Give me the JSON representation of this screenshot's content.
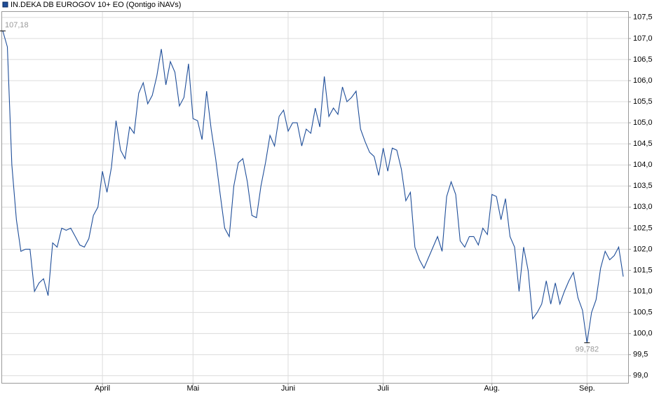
{
  "chart_data": {
    "type": "line",
    "title": "IN.DEKA DB EUROGOV 10+ EO (Qontigo iNAVs)",
    "series": [
      {
        "name": "IN.DEKA DB EUROGOV 10+ EO (Qontigo iNAVs)",
        "color": "#1f4e99",
        "values": [
          107.18,
          106.8,
          104.0,
          102.7,
          101.95,
          102.0,
          102.0,
          101.0,
          101.2,
          101.3,
          100.9,
          102.15,
          102.05,
          102.5,
          102.45,
          102.5,
          102.3,
          102.1,
          102.05,
          102.25,
          102.8,
          103.0,
          103.85,
          103.35,
          103.95,
          105.05,
          104.35,
          104.15,
          104.9,
          104.75,
          105.7,
          105.95,
          105.45,
          105.65,
          106.1,
          106.75,
          105.9,
          106.45,
          106.2,
          105.4,
          105.6,
          106.4,
          105.1,
          105.05,
          104.6,
          105.75,
          104.85,
          104.15,
          103.3,
          102.5,
          102.3,
          103.5,
          104.05,
          104.15,
          103.6,
          102.8,
          102.75,
          103.5,
          104.05,
          104.7,
          104.45,
          105.15,
          105.3,
          104.8,
          105.0,
          105.0,
          104.45,
          104.85,
          104.75,
          105.35,
          104.9,
          106.1,
          105.15,
          105.35,
          105.2,
          105.85,
          105.5,
          105.6,
          105.75,
          104.85,
          104.55,
          104.3,
          104.2,
          103.75,
          104.4,
          103.85,
          104.4,
          104.35,
          103.9,
          103.15,
          103.35,
          102.05,
          101.75,
          101.55,
          101.8,
          102.05,
          102.3,
          101.95,
          103.25,
          103.6,
          103.3,
          102.2,
          102.05,
          102.3,
          102.3,
          102.1,
          102.5,
          102.35,
          103.3,
          103.25,
          102.7,
          103.2,
          102.3,
          102.05,
          101.0,
          102.05,
          101.5,
          100.35,
          100.5,
          100.7,
          101.25,
          100.7,
          101.2,
          100.7,
          101.0,
          101.25,
          101.45,
          100.85,
          100.55,
          99.782,
          100.5,
          100.8,
          101.55,
          101.95,
          101.75,
          101.85,
          102.05,
          101.35
        ]
      }
    ],
    "xlim": [
      0,
      137
    ],
    "xticks": [
      {
        "value": 22,
        "label": "April"
      },
      {
        "value": 42,
        "label": "Mai"
      },
      {
        "value": 63,
        "label": "Juni"
      },
      {
        "value": 84,
        "label": "Juli"
      },
      {
        "value": 108,
        "label": "Aug."
      },
      {
        "value": 129,
        "label": "Sep."
      }
    ],
    "ylim": [
      98.83,
      107.63
    ],
    "yticks": [
      {
        "value": 99,
        "label": "99,0"
      },
      {
        "value": 99.5,
        "label": "99,5"
      },
      {
        "value": 100,
        "label": "100,0"
      },
      {
        "value": 100.5,
        "label": "100,5"
      },
      {
        "value": 101,
        "label": "101,0"
      },
      {
        "value": 101.5,
        "label": "101,5"
      },
      {
        "value": 102,
        "label": "102,0"
      },
      {
        "value": 102.5,
        "label": "102,5"
      },
      {
        "value": 103,
        "label": "103,0"
      },
      {
        "value": 103.5,
        "label": "103,5"
      },
      {
        "value": 104,
        "label": "104,0"
      },
      {
        "value": 104.5,
        "label": "104,5"
      },
      {
        "value": 105,
        "label": "105,0"
      },
      {
        "value": 105.5,
        "label": "105,5"
      },
      {
        "value": 106,
        "label": "106,0"
      },
      {
        "value": 106.5,
        "label": "106,5"
      },
      {
        "value": 107,
        "label": "107,0"
      },
      {
        "value": 107.5,
        "label": "107,5"
      }
    ],
    "annotations": [
      {
        "text": "107,18",
        "x": 0,
        "y": 107.18
      },
      {
        "text": "99,782",
        "x": 129,
        "y": 99.782
      }
    ],
    "grid": true
  }
}
